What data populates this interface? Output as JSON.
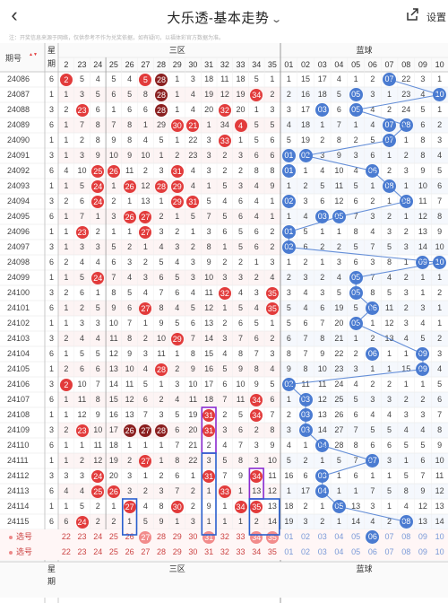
{
  "topbar": {
    "back_label": "‹",
    "title": "大乐透-基本走势",
    "chevron": "⌄",
    "settings_label": "设置"
  },
  "notice": "注：开奖信息来源于网络，仅供参考不作为兑奖依据，如有疑问，以福体彩官方数据为准。",
  "header": {
    "issue_label": "期号",
    "sort_icon": "sort-desc-icon",
    "week_label_1": "星",
    "week_label_2": "期",
    "front_zone_label": "三区",
    "back_zone_label": "蓝球",
    "front_cols": [
      "2",
      "23",
      "24",
      "25",
      "26",
      "27",
      "28",
      "29",
      "30",
      "31",
      "32",
      "33",
      "34",
      "35"
    ],
    "back_cols": [
      "01",
      "02",
      "03",
      "04",
      "05",
      "06",
      "07",
      "08",
      "09",
      "10"
    ]
  },
  "rows": [
    {
      "issue": "24086",
      "week": "6",
      "front": [
        "2",
        "5",
        "4",
        "5",
        "4",
        "5",
        "28",
        "1",
        "3",
        "18",
        "11",
        "18",
        "5",
        "1"
      ],
      "back": [
        "1",
        "15",
        "17",
        "4",
        "1",
        "2",
        "07",
        "22",
        "3",
        "1"
      ],
      "reds": [
        0,
        5
      ],
      "darks": [
        6
      ],
      "blues": [
        6
      ]
    },
    {
      "issue": "24087",
      "week": "1",
      "front": [
        "1",
        "3",
        "5",
        "6",
        "5",
        "8",
        "28",
        "1",
        "4",
        "19",
        "12",
        "19",
        "34",
        "2"
      ],
      "back": [
        "2",
        "16",
        "18",
        "5",
        "05",
        "3",
        "1",
        "23",
        "4",
        "10"
      ],
      "reds": [
        12
      ],
      "darks": [
        6
      ],
      "blues": [
        4,
        9
      ]
    },
    {
      "issue": "24088",
      "week": "3",
      "front": [
        "2",
        "23",
        "6",
        "1",
        "6",
        "6",
        "28",
        "1",
        "4",
        "20",
        "32",
        "20",
        "1",
        "3"
      ],
      "back": [
        "3",
        "17",
        "03",
        "6",
        "05",
        "4",
        "2",
        "24",
        "5",
        "1"
      ],
      "reds": [
        1,
        10
      ],
      "darks": [
        6
      ],
      "blues": [
        2,
        4
      ]
    },
    {
      "issue": "24089",
      "week": "6",
      "front": [
        "1",
        "7",
        "8",
        "7",
        "8",
        "1",
        "29",
        "30",
        "21",
        "1",
        "34",
        "4",
        "5",
        "5"
      ],
      "back": [
        "4",
        "18",
        "1",
        "7",
        "1",
        "4",
        "07",
        "08",
        "6",
        "2"
      ],
      "reds": [
        7,
        8,
        11
      ],
      "darks": [],
      "blues": [
        6,
        7
      ]
    },
    {
      "issue": "24090",
      "week": "1",
      "front": [
        "1",
        "2",
        "8",
        "9",
        "8",
        "4",
        "5",
        "1",
        "22",
        "3",
        "33",
        "1",
        "5",
        "6"
      ],
      "back": [
        "5",
        "19",
        "2",
        "8",
        "2",
        "5",
        "07",
        "1",
        "8",
        "3"
      ],
      "reds": [
        10
      ],
      "darks": [],
      "blues": [
        6
      ]
    },
    {
      "issue": "24091",
      "week": "3",
      "front": [
        "1",
        "3",
        "9",
        "10",
        "9",
        "10",
        "1",
        "2",
        "23",
        "3",
        "2",
        "3",
        "6",
        "6"
      ],
      "back": [
        "01",
        "02",
        "3",
        "9",
        "3",
        "6",
        "1",
        "2",
        "8",
        "4"
      ],
      "reds": [],
      "darks": [],
      "blues": [
        0,
        1
      ]
    },
    {
      "issue": "24092",
      "week": "6",
      "front": [
        "4",
        "10",
        "25",
        "26",
        "11",
        "2",
        "3",
        "31",
        "4",
        "3",
        "2",
        "2",
        "8",
        "8"
      ],
      "back": [
        "01",
        "1",
        "4",
        "10",
        "4",
        "06",
        "2",
        "3",
        "9",
        "5"
      ],
      "reds": [
        2,
        3,
        7
      ],
      "darks": [],
      "blues": [
        0,
        5
      ]
    },
    {
      "issue": "24093",
      "week": "1",
      "front": [
        "1",
        "5",
        "24",
        "1",
        "26",
        "12",
        "28",
        "29",
        "4",
        "1",
        "5",
        "3",
        "4",
        "9"
      ],
      "back": [
        "1",
        "2",
        "5",
        "11",
        "5",
        "1",
        "08",
        "1",
        "10",
        "6"
      ],
      "reds": [
        2,
        4,
        6,
        7
      ],
      "darks": [],
      "blues": [
        6
      ]
    },
    {
      "issue": "24094",
      "week": "3",
      "front": [
        "2",
        "6",
        "24",
        "2",
        "1",
        "13",
        "1",
        "29",
        "31",
        "5",
        "4",
        "6",
        "4",
        "1"
      ],
      "back": [
        "02",
        "3",
        "6",
        "12",
        "6",
        "2",
        "1",
        "08",
        "11",
        "7"
      ],
      "reds": [
        2,
        7,
        8
      ],
      "darks": [],
      "blues": [
        0,
        7
      ]
    },
    {
      "issue": "24095",
      "week": "6",
      "front": [
        "1",
        "7",
        "1",
        "3",
        "26",
        "27",
        "2",
        "1",
        "5",
        "7",
        "5",
        "6",
        "4",
        "1"
      ],
      "back": [
        "1",
        "4",
        "03",
        "05",
        "7",
        "3",
        "2",
        "1",
        "12",
        "8"
      ],
      "reds": [
        4,
        5
      ],
      "darks": [],
      "blues": [
        2,
        3
      ]
    },
    {
      "issue": "24096",
      "week": "1",
      "front": [
        "1",
        "23",
        "2",
        "1",
        "1",
        "27",
        "3",
        "2",
        "1",
        "3",
        "6",
        "5",
        "6",
        "2"
      ],
      "back": [
        "01",
        "5",
        "1",
        "1",
        "8",
        "4",
        "3",
        "2",
        "13",
        "9"
      ],
      "reds": [
        1,
        5
      ],
      "darks": [],
      "blues": [
        0
      ]
    },
    {
      "issue": "24097",
      "week": "3",
      "front": [
        "1",
        "3",
        "3",
        "5",
        "2",
        "1",
        "4",
        "3",
        "2",
        "8",
        "1",
        "5",
        "6",
        "2"
      ],
      "back": [
        "02",
        "6",
        "2",
        "2",
        "5",
        "7",
        "5",
        "3",
        "14",
        "10"
      ],
      "reds": [],
      "darks": [],
      "blues": [
        0
      ]
    },
    {
      "issue": "24098",
      "week": "6",
      "front": [
        "2",
        "4",
        "4",
        "6",
        "3",
        "2",
        "5",
        "4",
        "3",
        "9",
        "2",
        "2",
        "1",
        "3"
      ],
      "back": [
        "1",
        "2",
        "1",
        "3",
        "6",
        "3",
        "8",
        "1",
        "09",
        "10"
      ],
      "reds": [],
      "darks": [],
      "blues": [
        8,
        9
      ]
    },
    {
      "issue": "24099",
      "week": "1",
      "front": [
        "1",
        "5",
        "24",
        "7",
        "4",
        "3",
        "6",
        "5",
        "3",
        "10",
        "3",
        "3",
        "2",
        "4"
      ],
      "back": [
        "2",
        "3",
        "2",
        "4",
        "05",
        "7",
        "4",
        "2",
        "1",
        "1"
      ],
      "reds": [
        2
      ],
      "darks": [],
      "blues": [
        4
      ]
    },
    {
      "issue": "24100",
      "week": "3",
      "front": [
        "2",
        "6",
        "1",
        "8",
        "5",
        "4",
        "7",
        "6",
        "4",
        "11",
        "32",
        "4",
        "3",
        "35"
      ],
      "back": [
        "3",
        "4",
        "3",
        "5",
        "05",
        "8",
        "5",
        "3",
        "1",
        "2"
      ],
      "reds": [
        10,
        13
      ],
      "darks": [],
      "blues": [
        4
      ]
    },
    {
      "issue": "24101",
      "week": "6",
      "front": [
        "1",
        "2",
        "5",
        "9",
        "6",
        "27",
        "8",
        "4",
        "5",
        "12",
        "1",
        "5",
        "4",
        "35"
      ],
      "back": [
        "5",
        "4",
        "6",
        "19",
        "5",
        "06",
        "11",
        "2",
        "3",
        "1"
      ],
      "reds": [
        5,
        13
      ],
      "darks": [],
      "blues": [
        5
      ]
    },
    {
      "issue": "24102",
      "week": "1",
      "front": [
        "1",
        "3",
        "3",
        "10",
        "7",
        "1",
        "9",
        "5",
        "6",
        "13",
        "2",
        "6",
        "5",
        "1"
      ],
      "back": [
        "5",
        "6",
        "7",
        "20",
        "05",
        "1",
        "12",
        "3",
        "4",
        "1"
      ],
      "reds": [],
      "darks": [],
      "blues": [
        4
      ]
    },
    {
      "issue": "24103",
      "week": "3",
      "front": [
        "2",
        "4",
        "4",
        "11",
        "8",
        "2",
        "10",
        "29",
        "7",
        "14",
        "3",
        "7",
        "6",
        "2"
      ],
      "back": [
        "6",
        "7",
        "8",
        "21",
        "1",
        "2",
        "13",
        "4",
        "5",
        "2"
      ],
      "reds": [
        7
      ],
      "darks": [],
      "blues": []
    },
    {
      "issue": "24104",
      "week": "6",
      "front": [
        "1",
        "5",
        "5",
        "12",
        "9",
        "3",
        "11",
        "1",
        "8",
        "15",
        "4",
        "8",
        "7",
        "3"
      ],
      "back": [
        "8",
        "7",
        "9",
        "22",
        "2",
        "06",
        "1",
        "1",
        "09",
        "3"
      ],
      "reds": [],
      "darks": [],
      "blues": [
        5,
        8
      ]
    },
    {
      "issue": "24105",
      "week": "1",
      "front": [
        "2",
        "6",
        "6",
        "13",
        "10",
        "4",
        "28",
        "2",
        "9",
        "16",
        "5",
        "9",
        "8",
        "4"
      ],
      "back": [
        "9",
        "8",
        "10",
        "23",
        "3",
        "1",
        "1",
        "15",
        "09",
        "4"
      ],
      "reds": [
        6
      ],
      "darks": [],
      "blues": [
        8
      ]
    },
    {
      "issue": "24106",
      "week": "3",
      "front": [
        "2",
        "10",
        "7",
        "14",
        "11",
        "5",
        "1",
        "3",
        "10",
        "17",
        "6",
        "10",
        "9",
        "5"
      ],
      "back": [
        "02",
        "11",
        "11",
        "24",
        "4",
        "2",
        "2",
        "1",
        "1",
        "5"
      ],
      "reds": [
        0
      ],
      "darks": [],
      "blues": [
        0
      ]
    },
    {
      "issue": "24107",
      "week": "6",
      "front": [
        "1",
        "11",
        "8",
        "15",
        "12",
        "6",
        "2",
        "4",
        "11",
        "18",
        "7",
        "11",
        "34",
        "6"
      ],
      "back": [
        "1",
        "03",
        "12",
        "25",
        "5",
        "3",
        "3",
        "2",
        "2",
        "6"
      ],
      "reds": [
        12
      ],
      "darks": [],
      "blues": [
        1
      ]
    },
    {
      "issue": "24108",
      "week": "1",
      "front": [
        "1",
        "12",
        "9",
        "16",
        "13",
        "7",
        "3",
        "5",
        "19",
        "31",
        "2",
        "5",
        "34",
        "7"
      ],
      "back": [
        "2",
        "03",
        "13",
        "26",
        "6",
        "4",
        "4",
        "3",
        "3",
        "7"
      ],
      "reds": [
        9,
        12
      ],
      "darks": [],
      "blues": [
        1
      ]
    },
    {
      "issue": "24109",
      "week": "3",
      "front": [
        "2",
        "23",
        "10",
        "17",
        "26",
        "27",
        "28",
        "6",
        "20",
        "31",
        "3",
        "6",
        "2",
        "8"
      ],
      "back": [
        "3",
        "03",
        "14",
        "27",
        "7",
        "5",
        "5",
        "4",
        "4",
        "8"
      ],
      "reds": [
        1,
        9
      ],
      "darks": [
        4,
        5,
        6
      ],
      "blues": [
        1
      ]
    },
    {
      "issue": "24110",
      "week": "6",
      "front": [
        "1",
        "1",
        "11",
        "18",
        "1",
        "1",
        "1",
        "7",
        "21",
        "2",
        "4",
        "7",
        "3",
        "9"
      ],
      "back": [
        "4",
        "1",
        "04",
        "28",
        "8",
        "6",
        "6",
        "5",
        "5",
        "9"
      ],
      "reds": [],
      "darks": [],
      "blues": [
        2
      ]
    },
    {
      "issue": "24111",
      "week": "1",
      "front": [
        "1",
        "2",
        "12",
        "19",
        "2",
        "27",
        "1",
        "8",
        "22",
        "3",
        "5",
        "8",
        "3",
        "10"
      ],
      "back": [
        "5",
        "2",
        "1",
        "5",
        "7",
        "07",
        "3",
        "1",
        "6",
        "10"
      ],
      "reds": [
        5
      ],
      "darks": [],
      "blues": [
        5
      ]
    },
    {
      "issue": "24112",
      "week": "3",
      "front": [
        "3",
        "3",
        "24",
        "20",
        "3",
        "1",
        "2",
        "6",
        "1",
        "31",
        "7",
        "9",
        "34",
        "11"
      ],
      "back": [
        "16",
        "6",
        "03",
        "1",
        "6",
        "1",
        "1",
        "5",
        "7",
        "11"
      ],
      "reds": [
        2,
        9,
        12
      ],
      "darks": [],
      "blues": [
        2
      ]
    },
    {
      "issue": "24113",
      "week": "6",
      "front": [
        "4",
        "4",
        "25",
        "26",
        "3",
        "2",
        "3",
        "7",
        "2",
        "1",
        "33",
        "1",
        "13",
        "12"
      ],
      "back": [
        "1",
        "17",
        "04",
        "1",
        "1",
        "7",
        "5",
        "8",
        "9",
        "12"
      ],
      "reds": [
        2,
        3,
        10
      ],
      "darks": [],
      "blues": [
        2
      ]
    },
    {
      "issue": "24114",
      "week": "1",
      "front": [
        "1",
        "5",
        "2",
        "1",
        "27",
        "4",
        "8",
        "30",
        "2",
        "9",
        "1",
        "34",
        "35",
        "13"
      ],
      "back": [
        "18",
        "2",
        "1",
        "05",
        "13",
        "3",
        "1",
        "4",
        "12",
        "13"
      ],
      "reds": [
        4,
        7,
        11,
        12
      ],
      "darks": [],
      "blues": [
        3
      ]
    },
    {
      "issue": "24115",
      "week": "6",
      "front": [
        "6",
        "24",
        "2",
        "2",
        "1",
        "5",
        "9",
        "1",
        "3",
        "1",
        "1",
        "1",
        "2",
        "14"
      ],
      "back": [
        "19",
        "3",
        "2",
        "1",
        "14",
        "4",
        "2",
        "08",
        "13",
        "14"
      ],
      "reds": [
        1
      ],
      "darks": [],
      "blues": [
        7
      ]
    }
  ],
  "pick_rows": [
    {
      "label": "选号",
      "front": [
        "22",
        "23",
        "24",
        "25",
        "26",
        "27",
        "28",
        "29",
        "30",
        "31",
        "32",
        "33",
        "34",
        "35"
      ],
      "back": [
        "01",
        "02",
        "03",
        "04",
        "05",
        "06",
        "07",
        "08",
        "09",
        "10"
      ],
      "balls": [
        5,
        9,
        12,
        13
      ],
      "blue_balls": [
        5
      ]
    },
    {
      "label": "选号",
      "front": [
        "22",
        "23",
        "24",
        "25",
        "26",
        "27",
        "28",
        "29",
        "30",
        "31",
        "32",
        "33",
        "34",
        "35"
      ],
      "back": [
        "01",
        "02",
        "03",
        "04",
        "05",
        "06",
        "07",
        "08",
        "09",
        "10"
      ],
      "balls": [],
      "blue_balls": []
    }
  ],
  "footer": {
    "week_label_1": "星",
    "week_label_2": "期",
    "front_zone_label": "三区",
    "back_zone_label": "蓝球"
  },
  "colors": {
    "red_ball": "#e23b3b",
    "dark_ball": "#8a1f1f",
    "blue_ball": "#4a7bd1",
    "pick_text": "#cc4444",
    "highlight_box_purple": "#8a2bd1",
    "highlight_box_blue": "#2a5fcf"
  }
}
